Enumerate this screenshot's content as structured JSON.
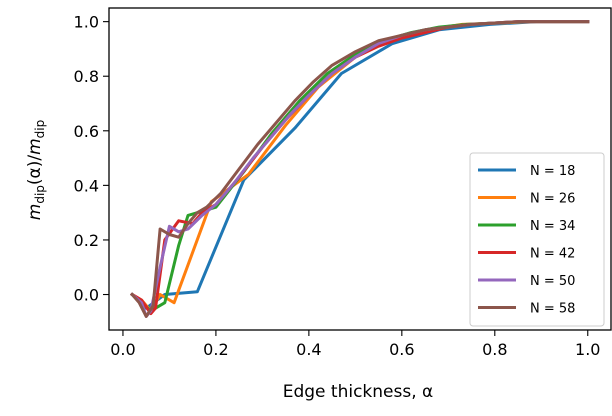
{
  "chart_data": {
    "type": "line",
    "title": "",
    "xlabel": "Edge thickness, α",
    "ylabel": "m_dip(α)/m_dip",
    "ylabel_parts": {
      "m1": "m",
      "sub1": "dip",
      "paren": "(α)/",
      "m2": "m",
      "sub2": "dip"
    },
    "xlim": [
      -0.03,
      1.05
    ],
    "ylim": [
      -0.13,
      1.05
    ],
    "xticks": [
      0.0,
      0.2,
      0.4,
      0.6,
      0.8,
      1.0
    ],
    "xtick_labels": [
      "0.0",
      "0.2",
      "0.4",
      "0.6",
      "0.8",
      "1.0"
    ],
    "yticks": [
      0.0,
      0.2,
      0.4,
      0.6,
      0.8,
      1.0
    ],
    "ytick_labels": [
      "0.0",
      "0.2",
      "0.4",
      "0.6",
      "0.8",
      "1.0"
    ],
    "grid": false,
    "legend": "center-right",
    "series": [
      {
        "name": "N = 18",
        "color": "#1f77b4",
        "x": [
          0.02,
          0.05,
          0.09,
          0.16,
          0.26,
          0.37,
          0.47,
          0.58,
          0.68,
          0.79,
          0.89,
          1.0
        ],
        "y": [
          0.0,
          -0.05,
          0.0,
          0.01,
          0.42,
          0.61,
          0.81,
          0.92,
          0.97,
          0.99,
          1.0,
          1.0
        ]
      },
      {
        "name": "N = 26",
        "color": "#ff7f0e",
        "x": [
          0.02,
          0.04,
          0.06,
          0.08,
          0.11,
          0.19,
          0.27,
          0.35,
          0.42,
          0.5,
          0.58,
          0.65,
          0.73,
          0.81,
          0.88,
          0.96,
          1.0
        ],
        "y": [
          0.0,
          -0.02,
          -0.06,
          0.0,
          -0.03,
          0.34,
          0.44,
          0.62,
          0.76,
          0.87,
          0.94,
          0.97,
          0.99,
          0.995,
          1.0,
          1.0,
          1.0
        ]
      },
      {
        "name": "N = 34",
        "color": "#2ca02c",
        "x": [
          0.02,
          0.04,
          0.06,
          0.09,
          0.12,
          0.14,
          0.18,
          0.2,
          0.26,
          0.32,
          0.38,
          0.44,
          0.5,
          0.56,
          0.62,
          0.68,
          0.74,
          0.8,
          0.86,
          0.92,
          1.0
        ],
        "y": [
          0.0,
          -0.03,
          -0.06,
          -0.03,
          0.18,
          0.29,
          0.31,
          0.32,
          0.45,
          0.59,
          0.71,
          0.81,
          0.88,
          0.93,
          0.96,
          0.98,
          0.99,
          0.995,
          1.0,
          1.0,
          1.0
        ]
      },
      {
        "name": "N = 42",
        "color": "#d62728",
        "x": [
          0.02,
          0.04,
          0.06,
          0.07,
          0.09,
          0.12,
          0.15,
          0.17,
          0.2,
          0.25,
          0.3,
          0.35,
          0.4,
          0.45,
          0.5,
          0.55,
          0.6,
          0.65,
          0.7,
          0.75,
          0.8,
          0.85,
          0.9,
          0.95,
          1.0
        ],
        "y": [
          0.0,
          -0.02,
          -0.07,
          -0.05,
          0.2,
          0.27,
          0.26,
          0.3,
          0.33,
          0.43,
          0.54,
          0.64,
          0.73,
          0.81,
          0.87,
          0.91,
          0.94,
          0.96,
          0.98,
          0.99,
          0.995,
          1.0,
          1.0,
          1.0,
          1.0
        ]
      },
      {
        "name": "N = 50",
        "color": "#9467bd",
        "x": [
          0.02,
          0.04,
          0.05,
          0.06,
          0.08,
          0.1,
          0.12,
          0.14,
          0.17,
          0.2,
          0.24,
          0.28,
          0.32,
          0.36,
          0.4,
          0.45,
          0.5,
          0.55,
          0.6,
          0.65,
          0.7,
          0.75,
          0.8,
          0.85,
          0.9,
          0.95,
          1.0
        ],
        "y": [
          0.0,
          -0.03,
          -0.08,
          -0.06,
          0.1,
          0.25,
          0.23,
          0.24,
          0.29,
          0.33,
          0.41,
          0.5,
          0.58,
          0.66,
          0.73,
          0.81,
          0.87,
          0.92,
          0.95,
          0.97,
          0.98,
          0.99,
          0.995,
          1.0,
          1.0,
          1.0,
          1.0
        ]
      },
      {
        "name": "N = 58",
        "color": "#8c564b",
        "x": [
          0.02,
          0.035,
          0.05,
          0.065,
          0.08,
          0.1,
          0.12,
          0.14,
          0.16,
          0.18,
          0.21,
          0.25,
          0.29,
          0.33,
          0.37,
          0.41,
          0.45,
          0.5,
          0.55,
          0.6,
          0.65,
          0.7,
          0.75,
          0.8,
          0.85,
          0.9,
          0.95,
          1.0
        ],
        "y": [
          0.0,
          -0.03,
          -0.08,
          -0.04,
          0.24,
          0.22,
          0.21,
          0.26,
          0.3,
          0.32,
          0.37,
          0.46,
          0.55,
          0.63,
          0.71,
          0.78,
          0.84,
          0.89,
          0.93,
          0.95,
          0.97,
          0.98,
          0.99,
          0.995,
          1.0,
          1.0,
          1.0,
          1.0
        ]
      }
    ]
  }
}
